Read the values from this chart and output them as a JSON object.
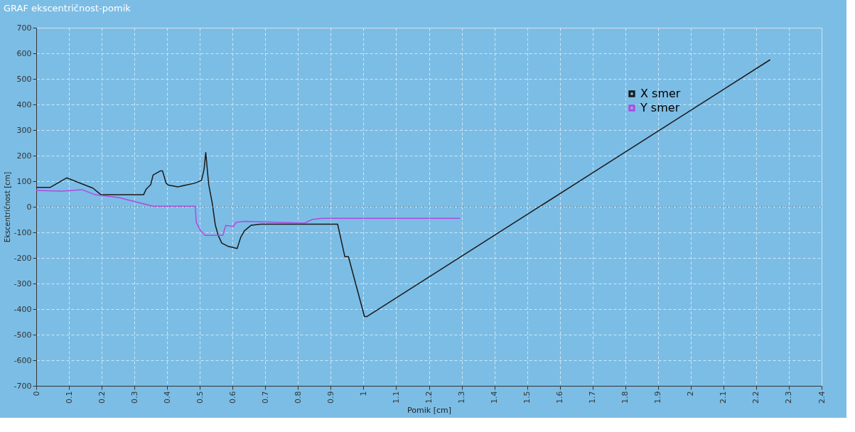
{
  "chart_data": {
    "type": "line",
    "title": "GRAF ekscentričnost-pomik",
    "xlabel": "Pomik [cm]",
    "ylabel": "Ekscentričnost [cm]",
    "xlim": [
      0,
      2.4
    ],
    "xticks": [
      0,
      0.1,
      0.2,
      0.3,
      0.4,
      0.5,
      0.6,
      0.7,
      0.8,
      0.9,
      1,
      1.1,
      1.2,
      1.3,
      1.4,
      1.5,
      1.6,
      1.7,
      1.8,
      1.9,
      2,
      2.1,
      2.2,
      2.3,
      2.4
    ],
    "ylim": [
      -700,
      700
    ],
    "yticks": [
      -700,
      -600,
      -500,
      -400,
      -300,
      -200,
      -100,
      0,
      100,
      200,
      300,
      400,
      500,
      600,
      700
    ],
    "grid": true,
    "legend": "top right",
    "marker": "none",
    "line_style": "solid",
    "ref_lines": [
      {
        "axis": "y",
        "value": 0,
        "line_style": "dotted",
        "color": "#555555"
      }
    ],
    "series": [
      {
        "name": "X smer",
        "color": "#1a1a1a",
        "x": [
          0,
          0.043,
          0.093,
          0.173,
          0.198,
          0.328,
          0.336,
          0.35,
          0.357,
          0.379,
          0.386,
          0.397,
          0.404,
          0.433,
          0.484,
          0.505,
          0.513,
          0.518,
          0.527,
          0.538,
          0.547,
          0.556,
          0.567,
          0.585,
          0.614,
          0.625,
          0.636,
          0.657,
          0.686,
          0.921,
          0.943,
          0.954,
          1.003,
          1.011,
          2.243
        ],
        "values": [
          76,
          76,
          113,
          73,
          47,
          47,
          69,
          87,
          124,
          140,
          140,
          92,
          85,
          78,
          92,
          103,
          147,
          212,
          87,
          13,
          -70,
          -112,
          -142,
          -154,
          -163,
          -119,
          -94,
          -72,
          -68,
          -68,
          -195,
          -195,
          -429,
          -429,
          575
        ]
      },
      {
        "name": "Y smer",
        "color": "#b04ae0",
        "x": [
          0,
          0.079,
          0.14,
          0.18,
          0.252,
          0.357,
          0.486,
          0.489,
          0.502,
          0.516,
          0.57,
          0.579,
          0.603,
          0.61,
          0.636,
          0.82,
          0.845,
          0.874,
          1.295
        ],
        "values": [
          64,
          61,
          67,
          47,
          36,
          2,
          2,
          -61,
          -94,
          -112,
          -112,
          -73,
          -77,
          -61,
          -57,
          -64,
          -49,
          -45,
          -45
        ]
      }
    ]
  }
}
